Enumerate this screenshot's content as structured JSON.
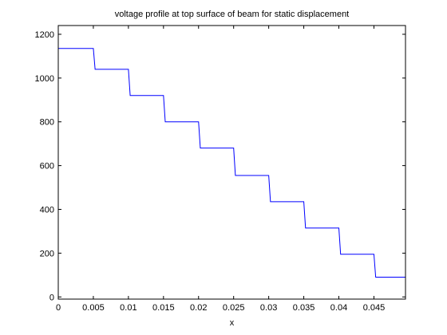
{
  "chart_data": {
    "type": "line",
    "title": "voltage profile at top surface of beam for static displacement",
    "xlabel": "x",
    "ylabel": "",
    "xlim": [
      0,
      0.0495
    ],
    "ylim": [
      -10,
      1240
    ],
    "xticks": [
      0,
      0.005,
      0.01,
      0.015,
      0.02,
      0.025,
      0.03,
      0.035,
      0.04,
      0.045
    ],
    "xtick_labels": [
      "0",
      "0.005",
      "0.01",
      "0.015",
      "0.02",
      "0.025",
      "0.03",
      "0.035",
      "0.04",
      "0.045"
    ],
    "yticks": [
      0,
      200,
      400,
      600,
      800,
      1000,
      1200
    ],
    "ytick_labels": [
      "0",
      "200",
      "400",
      "600",
      "800",
      "1000",
      "1200"
    ],
    "grid": false,
    "legend": "none",
    "series": [
      {
        "color": "#0000ff",
        "x": [
          0,
          0.005,
          0.00525,
          0.01,
          0.01025,
          0.015,
          0.01525,
          0.02,
          0.02025,
          0.025,
          0.02525,
          0.03,
          0.03025,
          0.035,
          0.03525,
          0.04,
          0.04025,
          0.045,
          0.04525,
          0.0495
        ],
        "y": [
          1135,
          1135,
          1040,
          1040,
          920,
          920,
          800,
          800,
          680,
          680,
          555,
          555,
          435,
          435,
          315,
          315,
          195,
          195,
          90,
          90
        ]
      }
    ]
  }
}
